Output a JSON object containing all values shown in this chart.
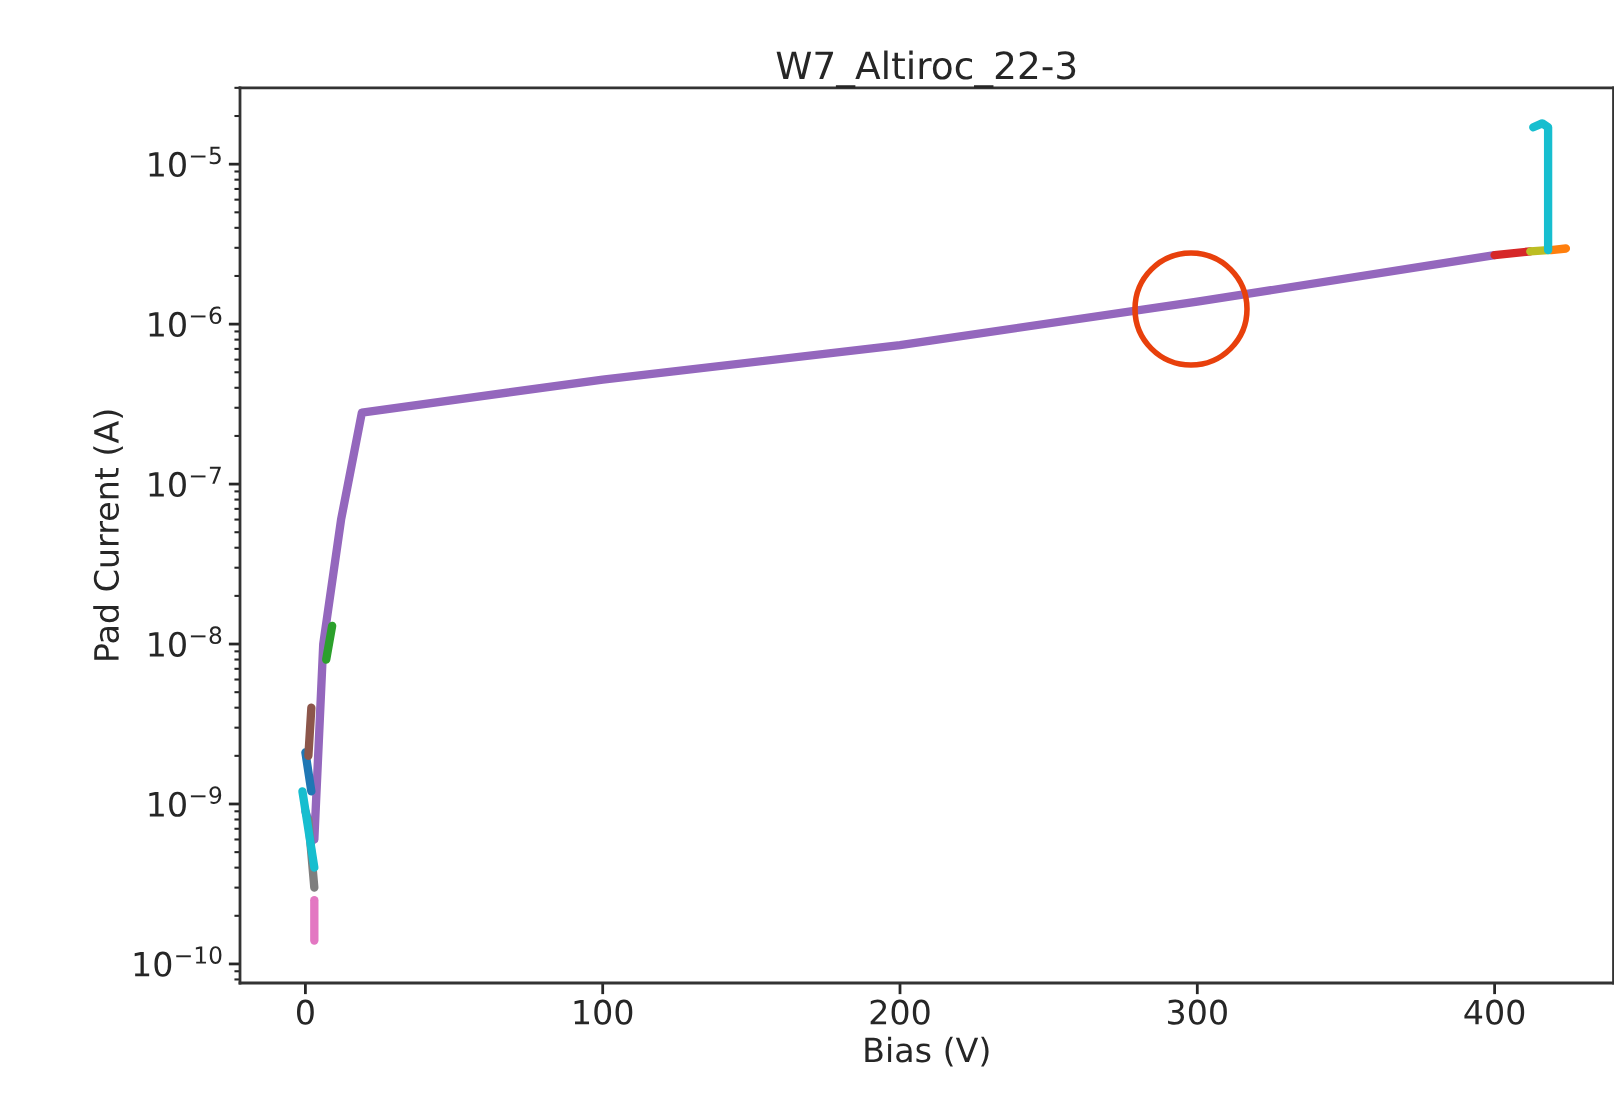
{
  "chart_data": {
    "type": "line",
    "title": "W7_Altiroc_22-3",
    "xlabel": "Bias (V)",
    "ylabel": "Pad Current (A)",
    "log": "y",
    "grid": false,
    "legend": false,
    "marker": "none",
    "line_style": "solid",
    "xlim": [
      -22,
      440
    ],
    "xticks": [
      0,
      100,
      200,
      300,
      400
    ],
    "ylim": [
      7.6e-11,
      3e-05
    ],
    "yticks": [
      {
        "value": 1e-05,
        "label": "10$^{−5}$"
      },
      {
        "value": 1e-06,
        "label": "10$^{−6}$"
      },
      {
        "value": 1e-07,
        "label": "10$^{−7}$"
      },
      {
        "value": 1e-08,
        "label": "10$^{−8}$"
      },
      {
        "value": 1e-09,
        "label": "10$^{−9}$"
      },
      {
        "value": 1e-10,
        "label": "10$^{−10}$"
      }
    ],
    "series": [
      {
        "color": "#9467bd",
        "x": [
          0,
          3,
          6,
          12,
          19,
          100,
          200,
          300,
          400
        ],
        "values": [
          9e-10,
          6e-10,
          1e-08,
          6e-08,
          2.8e-07,
          4.5e-07,
          7.4e-07,
          1.38e-06,
          2.7e-06
        ]
      },
      {
        "color": "#1f77b4",
        "x": [
          0,
          2
        ],
        "values": [
          2.1e-09,
          1.2e-09
        ]
      },
      {
        "color": "#ff7f0e",
        "x": [
          419,
          424
        ],
        "values": [
          2.9e-06,
          2.97e-06
        ]
      },
      {
        "color": "#2ca02c",
        "x": [
          7,
          9
        ],
        "values": [
          8e-09,
          1.3e-08
        ]
      },
      {
        "color": "#d62728",
        "x": [
          400,
          412
        ],
        "values": [
          2.7e-06,
          2.85e-06
        ]
      },
      {
        "color": "#8c564b",
        "x": [
          1,
          2
        ],
        "values": [
          2e-09,
          4e-09
        ]
      },
      {
        "color": "#e377c2",
        "x": [
          3,
          3
        ],
        "values": [
          2.5e-10,
          1.4e-10
        ]
      },
      {
        "color": "#7f7f7f",
        "x": [
          1,
          3
        ],
        "values": [
          8e-10,
          3e-10
        ]
      },
      {
        "color": "#bcbd22",
        "x": [
          412,
          418
        ],
        "values": [
          2.85e-06,
          2.9e-06
        ]
      },
      {
        "color": "#17becf",
        "x": [
          -1,
          3
        ],
        "values": [
          1.2e-09,
          4e-10
        ]
      },
      {
        "color": "#17becf",
        "x": [
          418,
          418,
          416,
          413
        ],
        "values": [
          2.9e-06,
          1.7e-05,
          1.8e-05,
          1.7e-05
        ]
      }
    ]
  }
}
